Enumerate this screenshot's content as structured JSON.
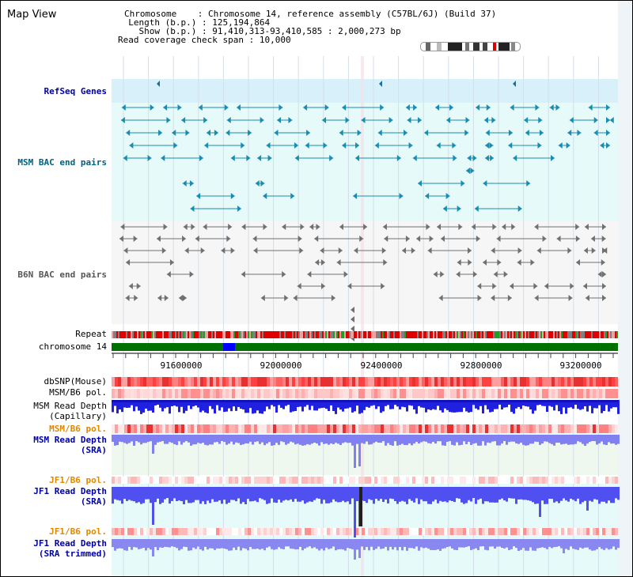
{
  "header": {
    "title": "Map View",
    "chromosome_label": "Chromosome",
    "chromosome_value": "Chromosome 14, reference assembly (C57BL/6J) (Build 37)",
    "length_label": "Length (b.p.)",
    "length_value": "125,194,864",
    "show_label": "Show (b.p.)",
    "show_value": "91,410,313-93,410,585 : 2,000,273 bp",
    "coverage_label": "Read coverage check span",
    "coverage_value": "10,000"
  },
  "tracks": {
    "refseq": "RefSeq Genes",
    "msm_bac": "MSM BAC end pairs",
    "b6n_bac": "B6N BAC end pairs",
    "repeat": "Repeat",
    "chromosome": "chromosome 14",
    "dbsnp": "dbSNP(Mouse)",
    "msm_b6_pol_1": "MSM/B6 pol.",
    "msm_depth_cap_1": "MSM Read Depth",
    "msm_depth_cap_2": "(Capillary)",
    "msm_b6_pol_2": "MSM/B6 pol.",
    "msm_depth_sra_1": "MSM Read Depth",
    "msm_depth_sra_2": "(SRA)",
    "jf1_b6_pol_1": "JF1/B6 pol.",
    "jf1_depth_sra_1": "JF1 Read Depth",
    "jf1_depth_sra_2": "(SRA)",
    "jf1_b6_pol_2": "JF1/B6 pol.",
    "jf1_depth_trim_1": "JF1 Read Depth",
    "jf1_depth_trim_2": "(SRA trimmed)"
  },
  "axis": {
    "ticks": [
      "91600000",
      "92000000",
      "92400000",
      "92800000",
      "93200000"
    ]
  },
  "colors": {
    "accent": "#0000aa",
    "chromosome_bar": "#007000",
    "highlight": "#0000ff",
    "refseq_bg": "#d8f0fa",
    "bac_bg": "#e6fafa",
    "polymorphism": "#ff0000",
    "depth": "#2020e0"
  }
}
